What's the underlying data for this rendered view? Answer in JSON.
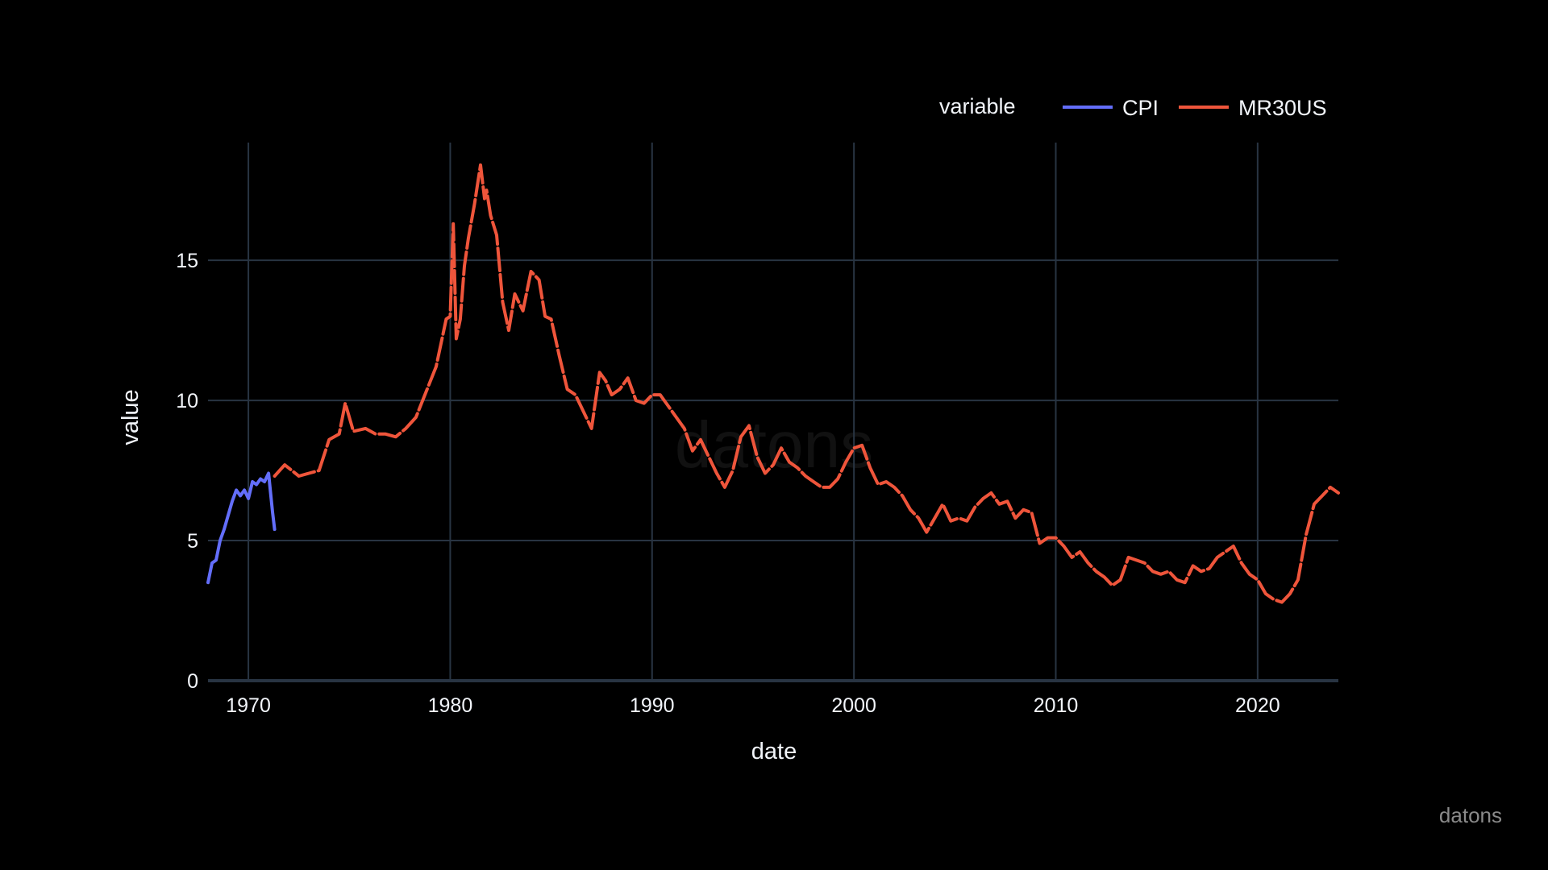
{
  "chart_data": {
    "type": "line",
    "title": "",
    "xlabel": "date",
    "ylabel": "value",
    "xlim": [
      1968,
      2024
    ],
    "ylim": [
      0,
      19.2
    ],
    "xticks": [
      1970,
      1980,
      1990,
      2000,
      2010,
      2020
    ],
    "xtick_labels": [
      "1970",
      "1980",
      "1990",
      "2000",
      "2010",
      "2020"
    ],
    "yticks": [
      0,
      5,
      10,
      15
    ],
    "ytick_labels": [
      "0",
      "5",
      "10",
      "15"
    ],
    "grid": true,
    "legend": {
      "title": "variable",
      "position": "top-right",
      "entries": [
        "CPI",
        "MR30US"
      ]
    },
    "series": [
      {
        "name": "CPI",
        "color": "#636efa",
        "x": [
          1968.0,
          1968.2,
          1968.4,
          1968.6,
          1968.8,
          1969.0,
          1969.2,
          1969.4,
          1969.6,
          1969.8,
          1970.0,
          1970.2,
          1970.4,
          1970.6,
          1970.8,
          1971.0,
          1971.2,
          1971.3
        ],
        "y": [
          3.5,
          4.2,
          4.3,
          5.0,
          5.4,
          5.9,
          6.4,
          6.8,
          6.6,
          6.8,
          6.5,
          7.1,
          7.0,
          7.2,
          7.1,
          7.4,
          6.0,
          5.4
        ]
      },
      {
        "name": "MR30US",
        "color": "#ef553b",
        "x": [
          1971.3,
          1971.8,
          1972.5,
          1973.0,
          1973.5,
          1974.0,
          1974.5,
          1974.8,
          1975.2,
          1975.8,
          1976.3,
          1976.8,
          1977.3,
          1977.8,
          1978.3,
          1978.8,
          1979.3,
          1979.8,
          1980.0,
          1980.15,
          1980.3,
          1980.5,
          1980.7,
          1980.9,
          1981.2,
          1981.5,
          1981.7,
          1981.8,
          1982.0,
          1982.3,
          1982.6,
          1982.9,
          1983.2,
          1983.6,
          1984.0,
          1984.4,
          1984.7,
          1985.0,
          1985.4,
          1985.8,
          1986.2,
          1986.6,
          1987.0,
          1987.4,
          1987.7,
          1988.0,
          1988.4,
          1988.8,
          1989.2,
          1989.6,
          1990.0,
          1990.4,
          1990.8,
          1991.2,
          1991.6,
          1992.0,
          1992.4,
          1992.8,
          1993.2,
          1993.6,
          1994.0,
          1994.4,
          1994.8,
          1995.2,
          1995.6,
          1996.0,
          1996.4,
          1996.8,
          1997.2,
          1997.6,
          1998.0,
          1998.4,
          1998.8,
          1999.2,
          1999.6,
          2000.0,
          2000.4,
          2000.8,
          2001.2,
          2001.6,
          2002.0,
          2002.4,
          2002.8,
          2003.2,
          2003.6,
          2004.0,
          2004.4,
          2004.8,
          2005.2,
          2005.6,
          2006.0,
          2006.4,
          2006.8,
          2007.2,
          2007.6,
          2008.0,
          2008.4,
          2008.8,
          2009.2,
          2009.6,
          2010.0,
          2010.4,
          2010.8,
          2011.2,
          2011.6,
          2012.0,
          2012.4,
          2012.8,
          2013.2,
          2013.6,
          2014.0,
          2014.4,
          2014.8,
          2015.2,
          2015.6,
          2016.0,
          2016.4,
          2016.8,
          2017.2,
          2017.6,
          2018.0,
          2018.4,
          2018.8,
          2019.2,
          2019.6,
          2020.0,
          2020.4,
          2020.8,
          2021.2,
          2021.6,
          2022.0,
          2022.4,
          2022.8,
          2023.2,
          2023.6,
          2024.0
        ],
        "y": [
          7.3,
          7.7,
          7.3,
          7.4,
          7.5,
          8.6,
          8.8,
          9.9,
          8.9,
          9.0,
          8.8,
          8.8,
          8.7,
          9.0,
          9.4,
          10.3,
          11.2,
          12.9,
          13.0,
          16.3,
          12.2,
          12.9,
          14.8,
          15.8,
          17.0,
          18.4,
          17.2,
          17.5,
          16.6,
          15.9,
          13.5,
          12.5,
          13.8,
          13.2,
          14.6,
          14.3,
          13.0,
          12.9,
          11.6,
          10.4,
          10.2,
          9.6,
          9.0,
          11.0,
          10.7,
          10.2,
          10.4,
          10.8,
          10.0,
          9.9,
          10.2,
          10.2,
          9.8,
          9.4,
          9.0,
          8.2,
          8.6,
          8.0,
          7.4,
          6.9,
          7.5,
          8.7,
          9.1,
          8.0,
          7.4,
          7.7,
          8.3,
          7.8,
          7.6,
          7.3,
          7.1,
          6.9,
          6.9,
          7.2,
          7.8,
          8.3,
          8.4,
          7.6,
          7.0,
          7.1,
          6.9,
          6.6,
          6.1,
          5.8,
          5.3,
          5.8,
          6.3,
          5.7,
          5.8,
          5.7,
          6.2,
          6.5,
          6.7,
          6.3,
          6.4,
          5.8,
          6.1,
          6.0,
          4.9,
          5.1,
          5.1,
          4.8,
          4.4,
          4.6,
          4.2,
          3.9,
          3.7,
          3.4,
          3.6,
          4.4,
          4.3,
          4.2,
          3.9,
          3.8,
          3.9,
          3.6,
          3.5,
          4.1,
          3.9,
          4.0,
          4.4,
          4.6,
          4.8,
          4.2,
          3.8,
          3.6,
          3.1,
          2.9,
          2.8,
          3.1,
          3.6,
          5.2,
          6.3,
          6.6,
          6.9,
          6.7
        ]
      }
    ]
  },
  "watermark": {
    "label": "datons"
  }
}
